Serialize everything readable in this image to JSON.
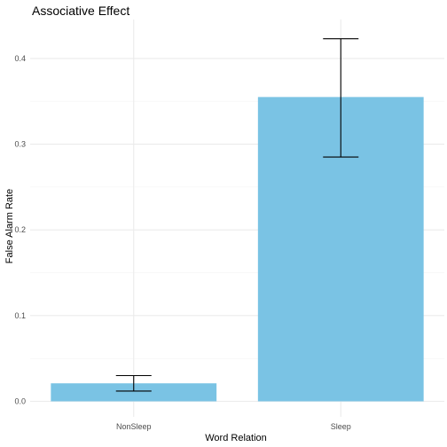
{
  "chart_data": {
    "type": "bar",
    "title": "Associative Effect",
    "xlabel": "Word Relation",
    "ylabel": "False Alarm Rate",
    "categories": [
      "NonSleep",
      "Sleep"
    ],
    "values": [
      0.021,
      0.355
    ],
    "error_low": [
      0.012,
      0.285
    ],
    "error_high": [
      0.03,
      0.423
    ],
    "ylim": [
      0,
      0.44
    ],
    "yticks": [
      0.0,
      0.1,
      0.2,
      0.3,
      0.4
    ],
    "ytick_labels": [
      "0.0",
      "0.1",
      "0.2",
      "0.3",
      "0.4"
    ],
    "grid": true,
    "legend": "none",
    "colors": {
      "bar": "#7ac3e4",
      "errorbar": "#000000",
      "grid_major": "#ebebeb",
      "grid_minor": "#f3f3f3"
    }
  }
}
